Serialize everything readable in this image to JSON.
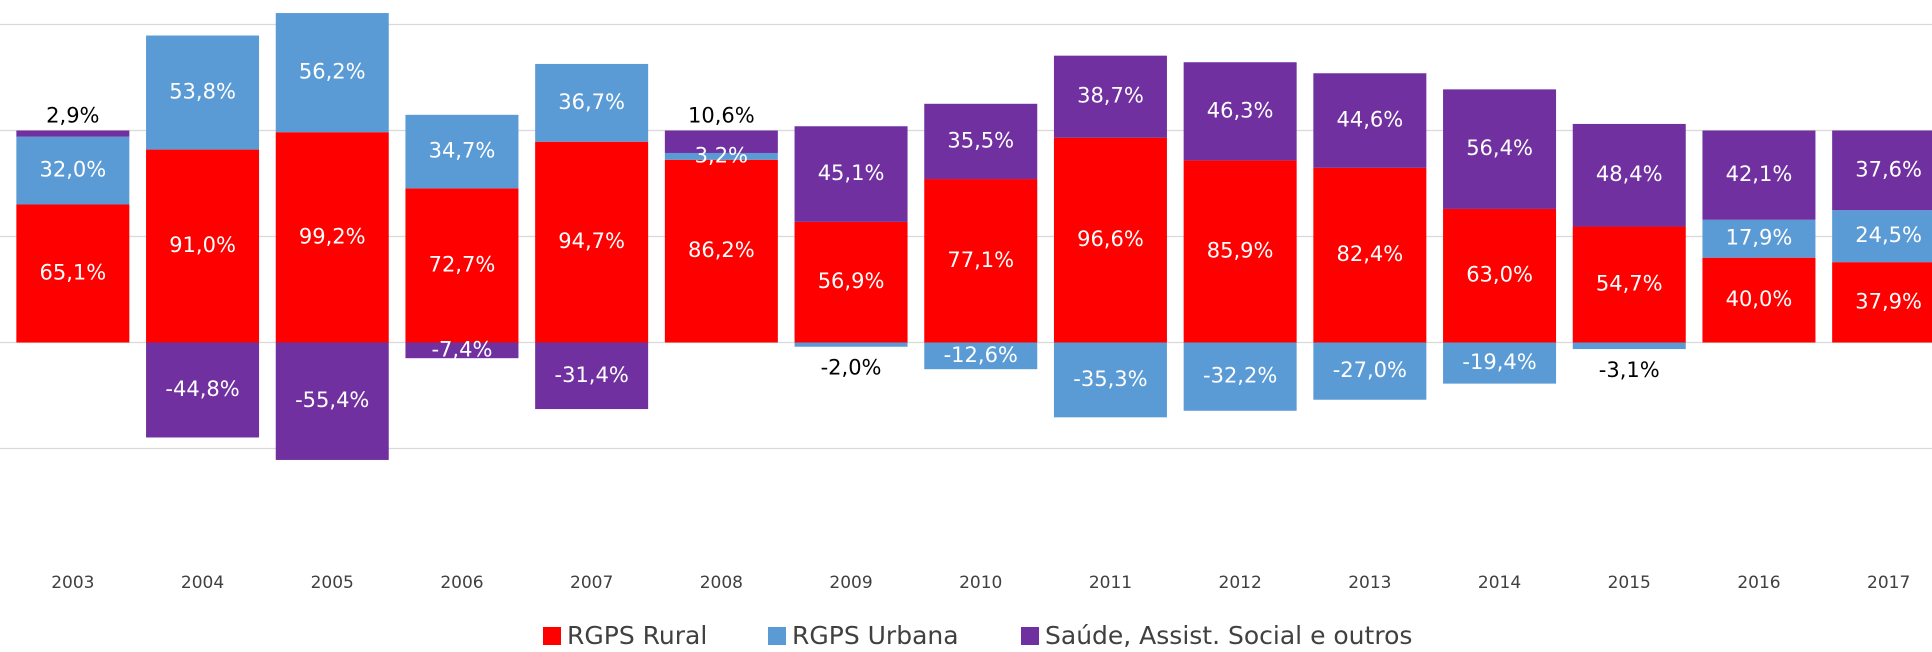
{
  "chart_data": {
    "type": "stacked_bar",
    "categories": [
      "2003",
      "2004",
      "2005",
      "2006",
      "2007",
      "2008",
      "2009",
      "2010",
      "2011",
      "2012",
      "2013",
      "2014",
      "2015",
      "2016",
      "2017"
    ],
    "series": [
      {
        "name": "RGPS Rural",
        "color": "#ff0000",
        "values": [
          65.1,
          91.0,
          99.2,
          72.7,
          94.7,
          86.2,
          56.9,
          77.1,
          96.6,
          85.9,
          82.4,
          63.0,
          54.7,
          40.0,
          37.9
        ],
        "value_labels": [
          "65,1%",
          "91,0%",
          "99,2%",
          "72,7%",
          "94,7%",
          "86,2%",
          "56,9%",
          "77,1%",
          "96,6%",
          "85,9%",
          "82,4%",
          "63,0%",
          "54,7%",
          "40,0%",
          "37,9%"
        ]
      },
      {
        "name": "RGPS Urbana",
        "color": "#5b9bd5",
        "values": [
          32.0,
          53.8,
          56.2,
          34.7,
          36.7,
          3.2,
          -2.0,
          -12.6,
          -35.3,
          -32.2,
          -27.0,
          -19.4,
          -3.1,
          17.9,
          24.5
        ],
        "value_labels": [
          "32,0%",
          "53,8%",
          "56,2%",
          "34,7%",
          "36,7%",
          "3,2%",
          "-2,0%",
          "-12,6%",
          "-35,3%",
          "-32,2%",
          "-27,0%",
          "-19,4%",
          "-3,1%",
          "17,9%",
          "24,5%"
        ]
      },
      {
        "name": "Saúde, Assist. Social e outros",
        "color": "#7030a0",
        "values": [
          2.9,
          -44.8,
          -55.4,
          -7.4,
          -31.4,
          10.6,
          45.1,
          35.5,
          38.7,
          46.3,
          44.6,
          56.4,
          48.4,
          42.1,
          37.6
        ],
        "value_labels": [
          "2,9%",
          "-44,8%",
          "-55,4%",
          "-7,4%",
          "-31,4%",
          "10,6%",
          "45,1%",
          "35,5%",
          "38,7%",
          "46,3%",
          "44,6%",
          "56,4%",
          "48,4%",
          "42,1%",
          "37,6%"
        ]
      }
    ],
    "ylim": [
      -100,
      161
    ],
    "yticks": [
      -50,
      0,
      50,
      100,
      150
    ],
    "grid": true,
    "legend": "bottom"
  }
}
